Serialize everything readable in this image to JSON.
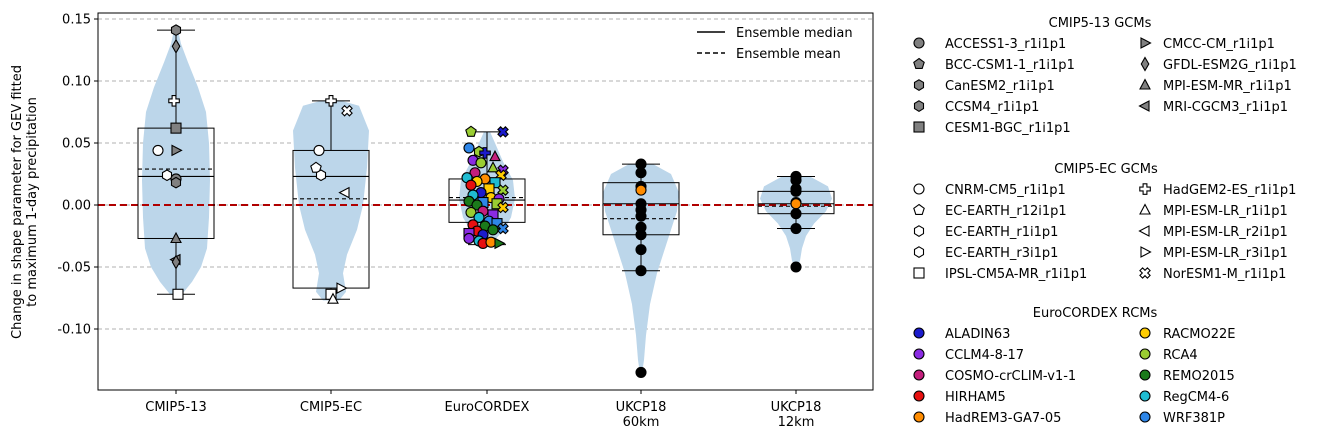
{
  "chart_data": {
    "type": "violin-box-scatter",
    "ylabel": "Change in shape parameter for GEV fitted to maximum 1-day precipitation",
    "ylim": [
      -0.15,
      0.155
    ],
    "yticks": [
      "0.15",
      "0.10",
      "0.05",
      "0.00",
      "-0.05",
      "-0.10"
    ],
    "ytick_values": [
      0.15,
      0.1,
      0.05,
      0.0,
      -0.05,
      -0.1
    ],
    "grid": "horizontal dashed",
    "zero_line_color": "#b00000",
    "violin_color": "#bcd6ea",
    "categories": [
      {
        "label": [
          "CMIP5-13"
        ],
        "box": {
          "q1": -0.027,
          "median": 0.023,
          "mean": 0.029,
          "q3": 0.062,
          "whisker_low": -0.072,
          "whisker_high": 0.141
        },
        "points": [
          {
            "y": 0.141,
            "m": "hexagon",
            "c": "#808080",
            "dx": 0
          },
          {
            "y": 0.128,
            "m": "diamond",
            "c": "#808080",
            "dx": 0
          },
          {
            "y": 0.084,
            "m": "plus",
            "c": "#ffffff",
            "dx": -2
          },
          {
            "y": 0.062,
            "m": "square",
            "c": "#808080",
            "dx": 0
          },
          {
            "y": 0.044,
            "m": "circle",
            "c": "#ffffff",
            "dx": -18
          },
          {
            "y": 0.044,
            "m": "tri-right",
            "c": "#808080",
            "dx": 0
          },
          {
            "y": 0.024,
            "m": "hexagon",
            "c": "#ffffff",
            "dx": -9
          },
          {
            "y": 0.021,
            "m": "circle",
            "c": "#808080",
            "dx": 0
          },
          {
            "y": 0.018,
            "m": "hexagon",
            "c": "#808080",
            "dx": 0
          },
          {
            "y": -0.027,
            "m": "tri-up",
            "c": "#808080",
            "dx": 0
          },
          {
            "y": -0.044,
            "m": "tri-left",
            "c": "#808080",
            "dx": 0
          },
          {
            "y": -0.046,
            "m": "diamond",
            "c": "#808080",
            "dx": 0
          },
          {
            "y": -0.072,
            "m": "square",
            "c": "#ffffff",
            "dx": 2
          }
        ]
      },
      {
        "label": [
          "CMIP5-EC"
        ],
        "box": {
          "q1": -0.067,
          "median": 0.023,
          "mean": 0.005,
          "q3": 0.044,
          "whisker_low": -0.076,
          "whisker_high": 0.084
        },
        "points": [
          {
            "y": 0.084,
            "m": "plus",
            "c": "#ffffff",
            "dx": 0
          },
          {
            "y": 0.076,
            "m": "cross",
            "c": "#ffffff",
            "dx": 16
          },
          {
            "y": 0.044,
            "m": "circle",
            "c": "#ffffff",
            "dx": -12
          },
          {
            "y": 0.03,
            "m": "pentagon",
            "c": "#ffffff",
            "dx": -15
          },
          {
            "y": 0.024,
            "m": "hexagon",
            "c": "#ffffff",
            "dx": -10
          },
          {
            "y": 0.01,
            "m": "tri-left",
            "c": "#ffffff",
            "dx": 14
          },
          {
            "y": -0.067,
            "m": "tri-right",
            "c": "#ffffff",
            "dx": 10
          },
          {
            "y": -0.072,
            "m": "square",
            "c": "#ffffff",
            "dx": 0
          },
          {
            "y": -0.076,
            "m": "tri-up",
            "c": "#ffffff",
            "dx": 2
          }
        ]
      },
      {
        "label": [
          "EuroCORDEX"
        ],
        "box": {
          "q1": -0.014,
          "median": 0.004,
          "mean": 0.006,
          "q3": 0.021,
          "whisker_low": -0.032,
          "whisker_high": 0.059
        },
        "points": [
          {
            "y": 0.059,
            "m": "pentagon",
            "c": "#9acd32",
            "dx": -16
          },
          {
            "y": 0.059,
            "m": "cross",
            "c": "#1b1bcc",
            "dx": 16
          },
          {
            "y": 0.046,
            "m": "circle",
            "c": "#2e86e8",
            "dx": -18
          },
          {
            "y": 0.043,
            "m": "hexagon",
            "c": "#9acd32",
            "dx": -8
          },
          {
            "y": 0.042,
            "m": "plus",
            "c": "#1b1bcc",
            "dx": -2
          },
          {
            "y": 0.039,
            "m": "tri-up",
            "c": "#c41e7c",
            "dx": 8
          },
          {
            "y": 0.036,
            "m": "circle",
            "c": "#8a2be2",
            "dx": -14
          },
          {
            "y": 0.034,
            "m": "circle",
            "c": "#9acd32",
            "dx": -6
          },
          {
            "y": 0.03,
            "m": "tri-up",
            "c": "#9acd32",
            "dx": 6
          },
          {
            "y": 0.028,
            "m": "cross",
            "c": "#8a2be2",
            "dx": 16
          },
          {
            "y": 0.026,
            "m": "circle",
            "c": "#c41e7c",
            "dx": -12
          },
          {
            "y": 0.024,
            "m": "cross",
            "c": "#ffcc00",
            "dx": 14
          },
          {
            "y": 0.022,
            "m": "circle",
            "c": "#1fbcd2",
            "dx": -20
          },
          {
            "y": 0.021,
            "m": "circle",
            "c": "#ff8c00",
            "dx": -2
          },
          {
            "y": 0.019,
            "m": "circle",
            "c": "#ffcc00",
            "dx": -10
          },
          {
            "y": 0.018,
            "m": "square",
            "c": "#1fbcd2",
            "dx": 8
          },
          {
            "y": 0.016,
            "m": "circle",
            "c": "#e81010",
            "dx": -16
          },
          {
            "y": 0.013,
            "m": "square",
            "c": "#ffcc00",
            "dx": 2
          },
          {
            "y": 0.012,
            "m": "cross",
            "c": "#9acd32",
            "dx": 16
          },
          {
            "y": 0.01,
            "m": "circle",
            "c": "#1b1bcc",
            "dx": -6
          },
          {
            "y": 0.008,
            "m": "circle",
            "c": "#1fbcd2",
            "dx": -14
          },
          {
            "y": 0.006,
            "m": "circle",
            "c": "#ffcc00",
            "dx": 4
          },
          {
            "y": 0.005,
            "m": "circle",
            "c": "#8a2be2",
            "dx": 12
          },
          {
            "y": 0.003,
            "m": "circle",
            "c": "#1b7a1b",
            "dx": -18
          },
          {
            "y": 0.002,
            "m": "square",
            "c": "#2e86e8",
            "dx": -4
          },
          {
            "y": 0.001,
            "m": "square",
            "c": "#9acd32",
            "dx": 10
          },
          {
            "y": 0.0,
            "m": "circle",
            "c": "#1b7a1b",
            "dx": -10
          },
          {
            "y": -0.002,
            "m": "cross",
            "c": "#ffcc00",
            "dx": 16
          },
          {
            "y": -0.005,
            "m": "circle",
            "c": "#c41e7c",
            "dx": -4
          },
          {
            "y": -0.006,
            "m": "circle",
            "c": "#9acd32",
            "dx": -16
          },
          {
            "y": -0.008,
            "m": "square",
            "c": "#8a2be2",
            "dx": 6
          },
          {
            "y": -0.01,
            "m": "circle",
            "c": "#1fbcd2",
            "dx": -8
          },
          {
            "y": -0.013,
            "m": "circle",
            "c": "#2e86e8",
            "dx": 2
          },
          {
            "y": -0.015,
            "m": "square",
            "c": "#2e86e8",
            "dx": 10
          },
          {
            "y": -0.016,
            "m": "circle",
            "c": "#e81010",
            "dx": -14
          },
          {
            "y": -0.017,
            "m": "circle",
            "c": "#1b7a1b",
            "dx": -2
          },
          {
            "y": -0.019,
            "m": "cross",
            "c": "#2e86e8",
            "dx": 16
          },
          {
            "y": -0.02,
            "m": "circle",
            "c": "#1b7a1b",
            "dx": 6
          },
          {
            "y": -0.021,
            "m": "circle",
            "c": "#e81010",
            "dx": -10
          },
          {
            "y": -0.023,
            "m": "square",
            "c": "#8a2be2",
            "dx": -18
          },
          {
            "y": -0.024,
            "m": "circle",
            "c": "#1b1bcc",
            "dx": -4
          },
          {
            "y": -0.027,
            "m": "circle",
            "c": "#8a2be2",
            "dx": -18
          },
          {
            "y": -0.029,
            "m": "circle",
            "c": "#1fbcd2",
            "dx": -8
          },
          {
            "y": -0.031,
            "m": "circle",
            "c": "#e81010",
            "dx": -4
          },
          {
            "y": -0.03,
            "m": "circle",
            "c": "#ff8c00",
            "dx": 4
          },
          {
            "y": -0.031,
            "m": "tri-right",
            "c": "#1b7a1b",
            "dx": 12
          }
        ]
      },
      {
        "label": [
          "UKCP18",
          "60km"
        ],
        "box": {
          "q1": -0.024,
          "median": 0.001,
          "mean": -0.011,
          "q3": 0.018,
          "whisker_low": -0.053,
          "whisker_high": 0.033
        },
        "points": [
          {
            "y": 0.033,
            "m": "circle",
            "c": "#000000",
            "dx": 0
          },
          {
            "y": 0.026,
            "m": "circle",
            "c": "#000000",
            "dx": 0
          },
          {
            "y": 0.015,
            "m": "circle",
            "c": "#000000",
            "dx": 0
          },
          {
            "y": 0.012,
            "m": "circle",
            "c": "#ff8c00",
            "dx": 0
          },
          {
            "y": 0.001,
            "m": "circle",
            "c": "#000000",
            "dx": 0
          },
          {
            "y": -0.004,
            "m": "circle",
            "c": "#000000",
            "dx": 0
          },
          {
            "y": -0.009,
            "m": "circle",
            "c": "#000000",
            "dx": 0
          },
          {
            "y": -0.018,
            "m": "circle",
            "c": "#000000",
            "dx": 0
          },
          {
            "y": -0.024,
            "m": "circle",
            "c": "#000000",
            "dx": 0
          },
          {
            "y": -0.036,
            "m": "circle",
            "c": "#000000",
            "dx": 0
          },
          {
            "y": -0.053,
            "m": "circle",
            "c": "#000000",
            "dx": 0
          },
          {
            "y": -0.135,
            "m": "circle",
            "c": "#000000",
            "dx": 0
          }
        ]
      },
      {
        "label": [
          "UKCP18",
          "12km"
        ],
        "box": {
          "q1": -0.007,
          "median": 0.001,
          "mean": -0.001,
          "q3": 0.011,
          "whisker_low": -0.019,
          "whisker_high": 0.023
        },
        "points": [
          {
            "y": 0.023,
            "m": "circle",
            "c": "#000000",
            "dx": 0
          },
          {
            "y": 0.02,
            "m": "circle",
            "c": "#000000",
            "dx": 0
          },
          {
            "y": 0.013,
            "m": "circle",
            "c": "#000000",
            "dx": 0
          },
          {
            "y": 0.011,
            "m": "circle",
            "c": "#000000",
            "dx": 0
          },
          {
            "y": 0.002,
            "m": "circle",
            "c": "#000000",
            "dx": 0
          },
          {
            "y": 0.001,
            "m": "circle",
            "c": "#ff8c00",
            "dx": 0
          },
          {
            "y": -0.007,
            "m": "circle",
            "c": "#000000",
            "dx": 0
          },
          {
            "y": -0.019,
            "m": "circle",
            "c": "#000000",
            "dx": 0
          },
          {
            "y": -0.05,
            "m": "circle",
            "c": "#000000",
            "dx": 0
          }
        ]
      }
    ],
    "inner_legend": {
      "placement": "top-right",
      "items": [
        {
          "label": "Ensemble median",
          "style": "solid"
        },
        {
          "label": "Ensemble mean",
          "style": "dashed"
        }
      ]
    },
    "legend_groups": [
      {
        "title": "CMIP5-13 GCMs",
        "items": [
          {
            "label": "ACCESS1-3_r1i1p1",
            "m": "circle",
            "c": "#808080"
          },
          {
            "label": "BCC-CSM1-1_r1i1p1",
            "m": "pentagon",
            "c": "#808080"
          },
          {
            "label": "CanESM2_r1i1p1",
            "m": "hexagon",
            "c": "#808080"
          },
          {
            "label": "CCSM4_r1i1p1",
            "m": "hexagon",
            "c": "#808080"
          },
          {
            "label": "CESM1-BGC_r1i1p1",
            "m": "square",
            "c": "#808080"
          },
          {
            "label": "CMCC-CM_r1i1p1",
            "m": "tri-right",
            "c": "#808080"
          },
          {
            "label": "GFDL-ESM2G_r1i1p1",
            "m": "diamond",
            "c": "#808080"
          },
          {
            "label": "MPI-ESM-MR_r1i1p1",
            "m": "tri-up",
            "c": "#808080"
          },
          {
            "label": "MRI-CGCM3_r1i1p1",
            "m": "tri-left",
            "c": "#808080"
          }
        ]
      },
      {
        "title": "CMIP5-EC GCMs",
        "items": [
          {
            "label": "CNRM-CM5_r1i1p1",
            "m": "circle",
            "c": "#ffffff"
          },
          {
            "label": "EC-EARTH_r12i1p1",
            "m": "pentagon",
            "c": "#ffffff"
          },
          {
            "label": "EC-EARTH_r1i1p1",
            "m": "hexagon",
            "c": "#ffffff"
          },
          {
            "label": "EC-EARTH_r3i1p1",
            "m": "hexagon",
            "c": "#ffffff"
          },
          {
            "label": "IPSL-CM5A-MR_r1i1p1",
            "m": "square",
            "c": "#ffffff"
          },
          {
            "label": "HadGEM2-ES_r1i1p1",
            "m": "plus",
            "c": "#ffffff"
          },
          {
            "label": "MPI-ESM-LR_r1i1p1",
            "m": "tri-up",
            "c": "#ffffff"
          },
          {
            "label": "MPI-ESM-LR_r2i1p1",
            "m": "tri-left",
            "c": "#ffffff"
          },
          {
            "label": "MPI-ESM-LR_r3i1p1",
            "m": "tri-right",
            "c": "#ffffff"
          },
          {
            "label": "NorESM1-M_r1i1p1",
            "m": "cross",
            "c": "#ffffff"
          }
        ]
      },
      {
        "title": "EuroCORDEX RCMs",
        "items": [
          {
            "label": "ALADIN63",
            "m": "circle",
            "c": "#1b1bcc"
          },
          {
            "label": "CCLM4-8-17",
            "m": "circle",
            "c": "#8a2be2"
          },
          {
            "label": "COSMO-crCLIM-v1-1",
            "m": "circle",
            "c": "#c41e7c"
          },
          {
            "label": "HIRHAM5",
            "m": "circle",
            "c": "#e81010"
          },
          {
            "label": "HadREM3-GA7-05",
            "m": "circle",
            "c": "#ff8c00"
          },
          {
            "label": "RACMO22E",
            "m": "circle",
            "c": "#ffcc00"
          },
          {
            "label": "RCA4",
            "m": "circle",
            "c": "#9acd32"
          },
          {
            "label": "REMO2015",
            "m": "circle",
            "c": "#1b7a1b"
          },
          {
            "label": "RegCM4-6",
            "m": "circle",
            "c": "#1fbcd2"
          },
          {
            "label": "WRF381P",
            "m": "circle",
            "c": "#2e86e8"
          }
        ]
      }
    ]
  }
}
